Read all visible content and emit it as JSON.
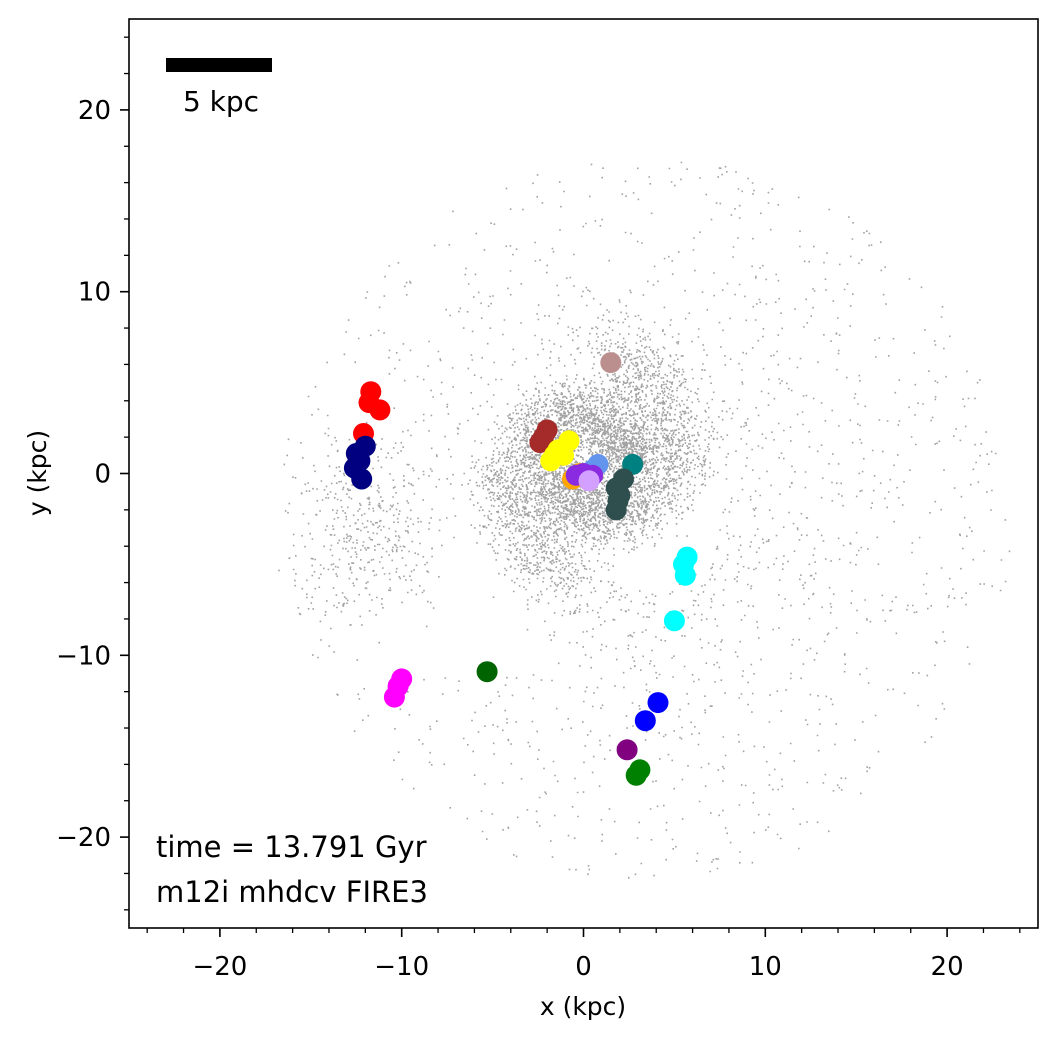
{
  "chart_data": {
    "type": "scatter",
    "title": "",
    "xlabel": "x (kpc)",
    "ylabel": "y (kpc)",
    "xlim": [
      -25,
      25
    ],
    "ylim": [
      -25,
      25
    ],
    "x_ticks": [
      -20,
      -10,
      0,
      10,
      20
    ],
    "y_ticks": [
      -20,
      -10,
      0,
      10,
      20
    ],
    "x_tick_labels": [
      "−20",
      "−10",
      "0",
      "10",
      "20"
    ],
    "y_tick_labels": [
      "−20",
      "−10",
      "0",
      "10",
      "20"
    ],
    "grid": false,
    "legend": "none",
    "scale_bar": {
      "length": 5,
      "label": "5 kpc"
    },
    "annotations": [
      "time = 13.791 Gyr",
      "m12i mhdcv FIRE3"
    ],
    "background_gas": {
      "description_color": "#000000",
      "style": "grey stochastic particle map (spiral arms)"
    },
    "series": [
      {
        "color": "#ff0000",
        "x": [
          -11.7,
          -11.8,
          -11.2,
          -12.1
        ],
        "y": [
          4.5,
          3.9,
          3.5,
          2.2
        ]
      },
      {
        "color": "#000080",
        "x": [
          -12.0,
          -12.5,
          -12.6,
          -12.2,
          -12.3
        ],
        "y": [
          1.5,
          1.1,
          0.3,
          -0.3,
          0.7
        ]
      },
      {
        "color": "#bc8f8f",
        "x": [
          1.5
        ],
        "y": [
          6.1
        ]
      },
      {
        "color": "#a52a2a",
        "x": [
          -2.0,
          -2.4,
          -2.2
        ],
        "y": [
          2.4,
          1.7,
          2.0
        ]
      },
      {
        "color": "#ffff00",
        "x": [
          -0.8,
          -1.4,
          -1.8,
          -1.1,
          -1.6
        ],
        "y": [
          1.8,
          1.3,
          0.7,
          1.0,
          1.0
        ]
      },
      {
        "color": "#ffa500",
        "x": [
          -0.6,
          -0.2
        ],
        "y": [
          -0.3,
          0.0
        ]
      },
      {
        "color": "#6495ed",
        "x": [
          0.8,
          0.5
        ],
        "y": [
          0.5,
          0.2
        ]
      },
      {
        "color": "#8a2be2",
        "x": [
          0.0,
          -0.4,
          0.5
        ],
        "y": [
          0.0,
          -0.1,
          -0.1
        ]
      },
      {
        "color": "#d4a0ff",
        "x": [
          0.3
        ],
        "y": [
          -0.4
        ]
      },
      {
        "color": "#008080",
        "x": [
          2.7
        ],
        "y": [
          0.5
        ]
      },
      {
        "color": "#2f4f4f",
        "x": [
          2.2,
          1.8,
          2.0,
          1.9,
          1.8
        ],
        "y": [
          -0.3,
          -0.8,
          -1.2,
          -1.5,
          -2.0
        ]
      },
      {
        "color": "#00ffff",
        "x": [
          5.7,
          5.5,
          5.6,
          5.0
        ],
        "y": [
          -4.6,
          -5.0,
          -5.6,
          -8.1
        ]
      },
      {
        "color": "#006400",
        "x": [
          -5.3
        ],
        "y": [
          -10.9
        ]
      },
      {
        "color": "#ff00ff",
        "x": [
          -10.0,
          -10.2,
          -10.4
        ],
        "y": [
          -11.3,
          -11.7,
          -12.3
        ]
      },
      {
        "color": "#0000ff",
        "x": [
          4.1,
          3.4
        ],
        "y": [
          -12.6,
          -13.6
        ]
      },
      {
        "color": "#800080",
        "x": [
          2.4
        ],
        "y": [
          -15.2
        ]
      },
      {
        "color": "#008000",
        "x": [
          3.1,
          2.9
        ],
        "y": [
          -16.3,
          -16.6
        ]
      }
    ]
  }
}
